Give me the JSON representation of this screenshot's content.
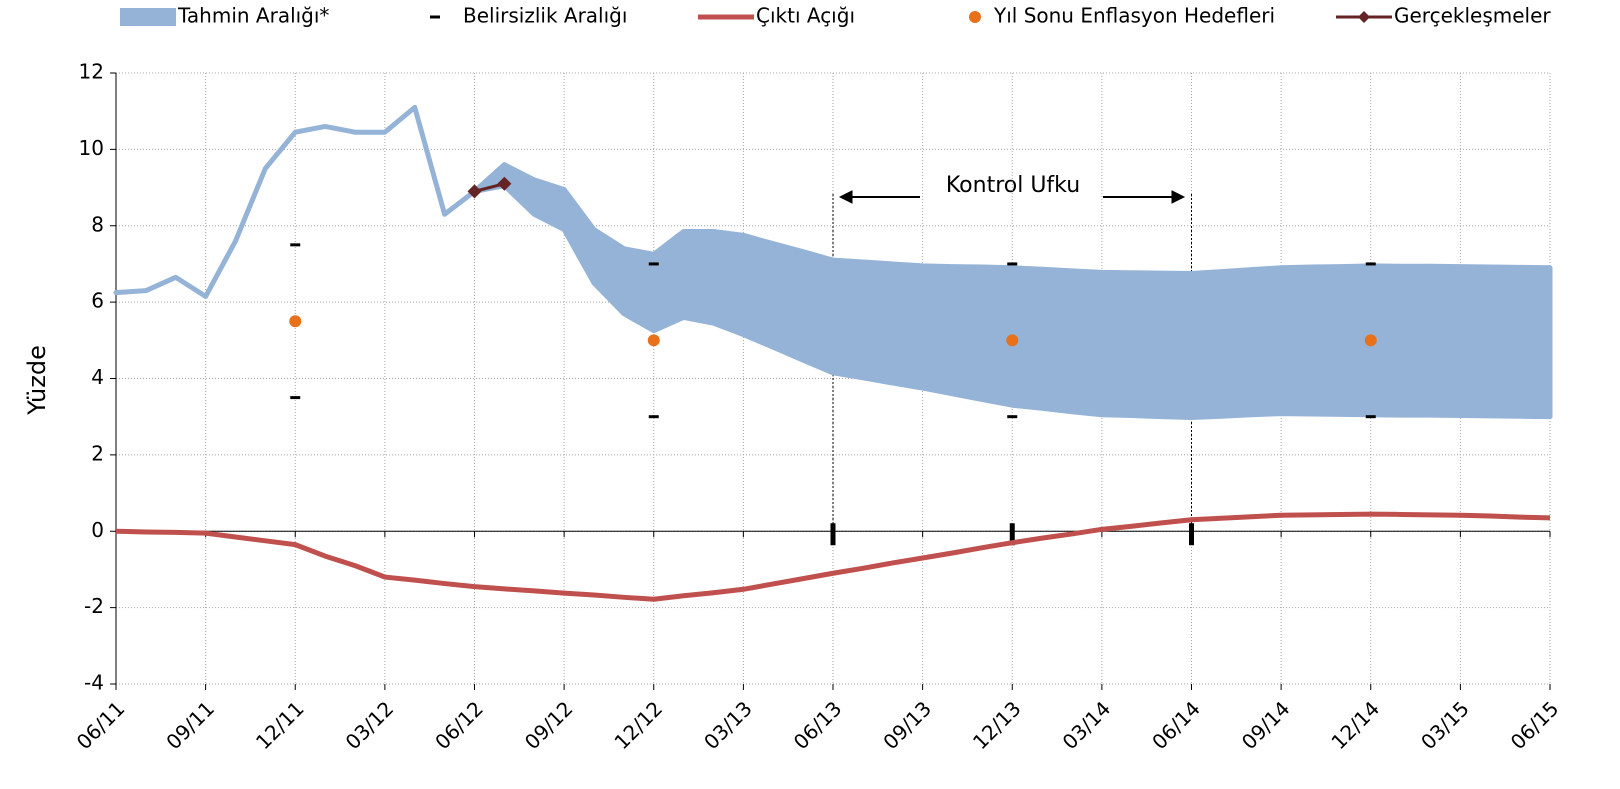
{
  "chart_data": {
    "type": "line",
    "ylabel": "Yüzde",
    "annotation": "Kontrol Ufku",
    "categories": [
      "06/11",
      null,
      null,
      "09/11",
      null,
      null,
      "12/11",
      null,
      null,
      "03/12",
      null,
      null,
      "06/12",
      null,
      null,
      "09/12",
      null,
      null,
      "12/12",
      null,
      null,
      "03/13",
      null,
      null,
      "06/13",
      null,
      null,
      "09/13",
      null,
      null,
      "12/13",
      null,
      null,
      "03/14",
      null,
      null,
      "06/14",
      null,
      null,
      "09/14",
      null,
      null,
      "12/14",
      null,
      null,
      "03/15",
      null,
      null,
      "06/15"
    ],
    "band": {
      "name": "Tahmin Aralığı*",
      "color": "#95b3d7",
      "upper": [
        6.25,
        6.3,
        6.65,
        6.15,
        7.6,
        9.5,
        10.45,
        10.6,
        10.45,
        10.45,
        11.1,
        8.3,
        8.9,
        9.6,
        9.2,
        8.95,
        7.9,
        7.4,
        7.25,
        7.85,
        7.85,
        7.75,
        7.53,
        7.32,
        7.1,
        7.05,
        7.0,
        6.95,
        6.93,
        6.92,
        6.9,
        6.86,
        6.82,
        6.78,
        6.77,
        6.76,
        6.75,
        6.8,
        6.85,
        6.9,
        6.92,
        6.93,
        6.95,
        6.94,
        6.94,
        6.93,
        6.92,
        6.91,
        6.9
      ],
      "lower": [
        6.25,
        6.3,
        6.65,
        6.15,
        7.6,
        9.5,
        10.45,
        10.6,
        10.45,
        10.45,
        11.1,
        8.3,
        8.9,
        9.05,
        8.3,
        7.9,
        6.5,
        5.7,
        5.25,
        5.6,
        5.45,
        5.15,
        4.82,
        4.48,
        4.15,
        4.02,
        3.88,
        3.75,
        3.6,
        3.45,
        3.3,
        3.22,
        3.13,
        3.05,
        3.03,
        3.0,
        2.98,
        3.01,
        3.05,
        3.08,
        3.07,
        3.06,
        3.05,
        3.04,
        3.04,
        3.03,
        3.02,
        3.01,
        3.0
      ]
    },
    "uncertainty": {
      "name": "Belirsizlik Aralığı",
      "color": "#000000",
      "upper": [
        null,
        null,
        null,
        null,
        null,
        null,
        7.5,
        null,
        null,
        null,
        null,
        null,
        null,
        null,
        null,
        null,
        null,
        null,
        7,
        null,
        null,
        null,
        null,
        null,
        null,
        null,
        null,
        null,
        null,
        null,
        7,
        null,
        null,
        null,
        null,
        null,
        null,
        null,
        null,
        null,
        null,
        null,
        7,
        null,
        null,
        null,
        null,
        null,
        null
      ],
      "lower": [
        null,
        null,
        null,
        null,
        null,
        null,
        3.5,
        null,
        null,
        null,
        null,
        null,
        null,
        null,
        null,
        null,
        null,
        null,
        3,
        null,
        null,
        null,
        null,
        null,
        null,
        null,
        null,
        null,
        null,
        null,
        3,
        null,
        null,
        null,
        null,
        null,
        null,
        null,
        null,
        null,
        null,
        null,
        3,
        null,
        null,
        null,
        null,
        null,
        null
      ]
    },
    "series": [
      {
        "name": "Çıktı Açığı",
        "color": "#c0504d",
        "kind": "line",
        "values": [
          0,
          -0.02,
          -0.03,
          -0.05,
          -0.15,
          -0.25,
          -0.35,
          -0.65,
          -0.9,
          -1.2,
          -1.28,
          -1.37,
          -1.45,
          -1.51,
          -1.56,
          -1.62,
          -1.67,
          -1.73,
          -1.78,
          -1.69,
          -1.61,
          -1.52,
          -1.38,
          -1.24,
          -1.1,
          -0.97,
          -0.83,
          -0.7,
          -0.57,
          -0.43,
          -0.3,
          -0.18,
          -0.07,
          0.05,
          0.13,
          0.22,
          0.3,
          0.34,
          0.38,
          0.42,
          0.43,
          0.44,
          0.45,
          0.44,
          0.43,
          0.42,
          0.4,
          0.37,
          0.35
        ]
      },
      {
        "name": "Yıl Sonu Enflasyon Hedefleri",
        "color": "#e8711a",
        "kind": "dot",
        "values": [
          null,
          null,
          null,
          null,
          null,
          null,
          5.5,
          null,
          null,
          null,
          null,
          null,
          null,
          null,
          null,
          null,
          null,
          null,
          5,
          null,
          null,
          null,
          null,
          null,
          null,
          null,
          null,
          null,
          null,
          null,
          5,
          null,
          null,
          null,
          null,
          null,
          null,
          null,
          null,
          null,
          null,
          null,
          5,
          null,
          null,
          null,
          null,
          null,
          null
        ]
      },
      {
        "name": "Gerçekleşmeler",
        "color": "#632423",
        "kind": "diamond-line",
        "values": [
          null,
          null,
          null,
          null,
          null,
          null,
          null,
          null,
          null,
          null,
          null,
          null,
          8.9,
          9.1,
          null,
          null,
          null,
          null,
          null,
          null,
          null,
          null,
          null,
          null,
          null,
          null,
          null,
          null,
          null,
          null,
          null,
          null,
          null,
          null,
          null,
          null,
          null,
          null,
          null,
          null,
          null,
          null,
          null,
          null,
          null,
          null,
          null,
          null,
          null
        ]
      }
    ],
    "ylim": [
      -4,
      12
    ],
    "yticks": [
      -4,
      -2,
      0,
      2,
      4,
      6,
      8,
      10,
      12
    ],
    "grid": true
  }
}
